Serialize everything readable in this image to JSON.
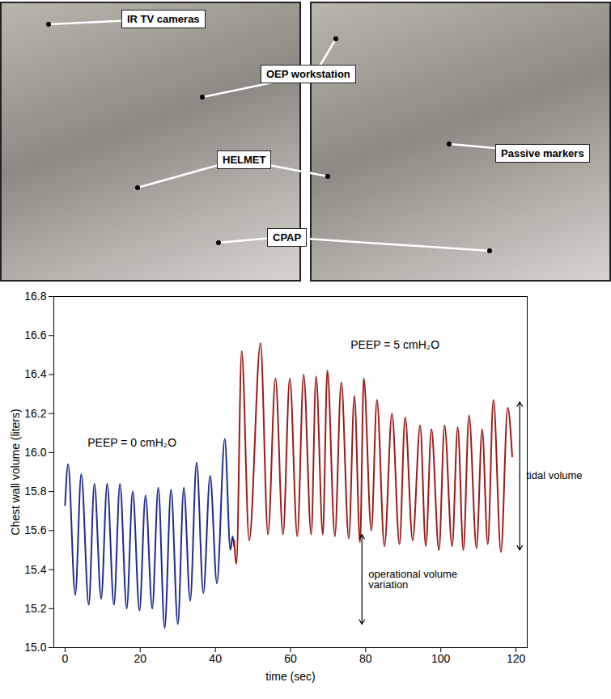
{
  "photo_labels": [
    "IR TV cameras",
    "OEP workstation",
    "HELMET",
    "Passive markers",
    "CPAP"
  ],
  "chart_data": {
    "type": "line",
    "xlabel": "time (sec)",
    "ylabel": "Chest wall volume (liters)",
    "xlim": [
      -3,
      123
    ],
    "xticks": [
      0,
      20,
      40,
      60,
      80,
      100,
      120
    ],
    "ylim": [
      15.0,
      16.8
    ],
    "yticks": [
      {
        "value": 15,
        "label": "15.0"
      },
      15.2,
      15.4,
      15.6,
      15.8,
      {
        "value": 16,
        "label": "16.0"
      },
      16.2,
      16.4,
      16.6,
      16.8
    ],
    "series": [
      {
        "name": "PEEP = 0 cmH₂O",
        "color": "#1f2d8c",
        "name_position": [
          6,
          16.05
        ],
        "x": [
          0,
          0.8,
          2.7,
          4.3,
          6.3,
          7.8,
          9.6,
          11.2,
          13,
          14.6,
          16.4,
          18,
          19.8,
          21.4,
          23.2,
          24.8,
          26.5,
          28.2,
          30,
          31.6,
          33.3,
          35,
          36.8,
          38.6,
          40.4,
          42.5,
          44,
          44.6,
          45
        ],
        "values": [
          15.73,
          15.94,
          15.27,
          15.89,
          15.22,
          15.84,
          15.25,
          15.84,
          15.22,
          15.84,
          15.2,
          15.8,
          15.19,
          15.78,
          15.2,
          15.82,
          15.1,
          15.81,
          15.12,
          15.82,
          15.24,
          15.95,
          15.28,
          15.88,
          15.33,
          16.07,
          15.5,
          15.57,
          15.52
        ]
      },
      {
        "name": "PEEP = 5 cmH₂O",
        "color": "#9b1b1b",
        "name_position": [
          76,
          16.55
        ],
        "x": [
          45,
          45.6,
          47,
          49,
          52,
          54,
          56,
          58,
          59.8,
          61.8,
          63.5,
          65.5,
          66.8,
          68.6,
          69.8,
          71.8,
          73.5,
          75.5,
          77,
          78.5,
          79.5,
          81.5,
          83,
          85,
          87,
          89,
          90.5,
          92.5,
          94.5,
          96,
          97.5,
          99.5,
          101,
          103,
          104.5,
          106,
          107.5,
          109.5,
          111,
          112.5,
          114,
          116,
          117.8,
          119
        ],
        "values": [
          15.55,
          15.43,
          16.52,
          15.55,
          16.56,
          15.58,
          16.38,
          15.58,
          16.38,
          15.57,
          16.4,
          15.58,
          16.39,
          15.58,
          16.42,
          15.57,
          16.36,
          15.56,
          16.29,
          15.54,
          16.38,
          15.6,
          16.27,
          15.52,
          16.2,
          15.53,
          16.18,
          15.55,
          16.14,
          15.52,
          16.12,
          15.5,
          16.14,
          15.52,
          16.13,
          15.5,
          16.19,
          15.51,
          16.12,
          15.53,
          16.27,
          15.49,
          16.23,
          15.98
        ]
      }
    ],
    "annotations": [
      {
        "text": "tidal volume",
        "x": 121,
        "y": [
          15.5,
          16.26
        ]
      },
      {
        "text": "operational volume variation",
        "x": 79,
        "y": [
          15.12,
          15.58
        ]
      }
    ]
  }
}
